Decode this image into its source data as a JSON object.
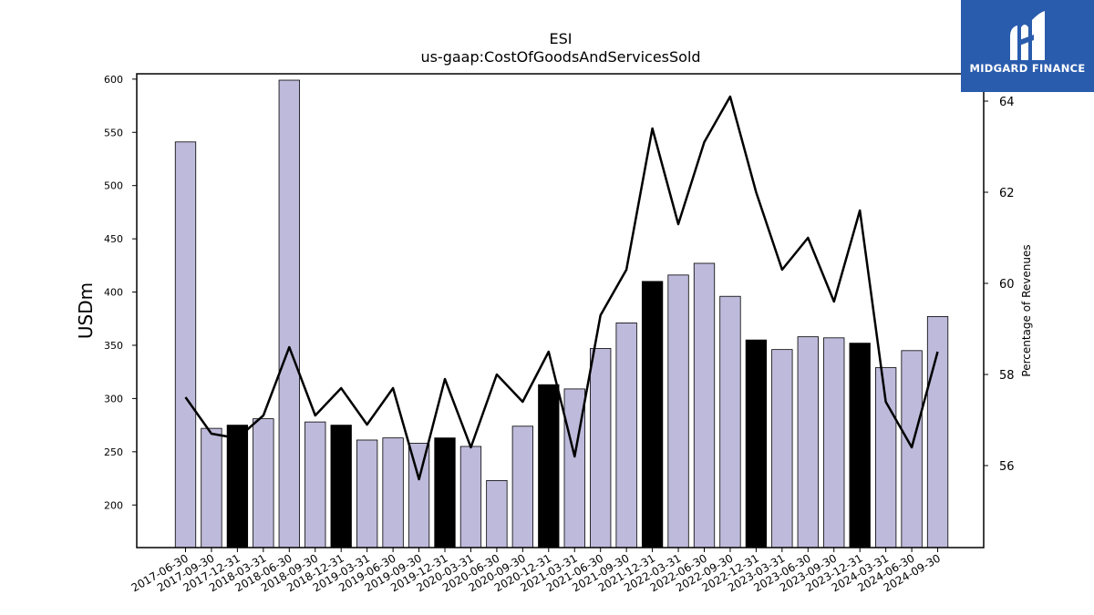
{
  "chart_data": {
    "type": "bar",
    "title": "ESI",
    "subtitle": "us-gaap:CostOfGoodsAndServicesSold",
    "ylabel": "USDm",
    "y2label": "Percentage of Revenues",
    "ylim": [
      160,
      605
    ],
    "y2lim": [
      54.2,
      64.6
    ],
    "yticks": [
      200,
      250,
      300,
      350,
      400,
      450,
      500,
      550,
      600
    ],
    "y2ticks": [
      56,
      58,
      60,
      62,
      64
    ],
    "categories": [
      "2017-06-30",
      "2017-09-30",
      "2017-12-31",
      "2018-03-31",
      "2018-06-30",
      "2018-09-30",
      "2018-12-31",
      "2019-03-31",
      "2019-06-30",
      "2019-09-30",
      "2019-12-31",
      "2020-03-31",
      "2020-06-30",
      "2020-09-30",
      "2020-12-31",
      "2021-03-31",
      "2021-06-30",
      "2021-09-30",
      "2021-12-31",
      "2022-03-31",
      "2022-06-30",
      "2022-09-30",
      "2022-12-31",
      "2023-03-31",
      "2023-06-30",
      "2023-09-30",
      "2023-12-31",
      "2024-03-31",
      "2024-06-30",
      "2024-09-30"
    ],
    "series": [
      {
        "type": "bar",
        "values": [
          541,
          272,
          275,
          281,
          599,
          278,
          275,
          261,
          263,
          258,
          263,
          255,
          223,
          274,
          313,
          309,
          347,
          371,
          410,
          416,
          427,
          396,
          355,
          346,
          358,
          357,
          352,
          329,
          345,
          377
        ],
        "highlight": [
          false,
          false,
          true,
          false,
          false,
          false,
          true,
          false,
          false,
          false,
          true,
          false,
          false,
          false,
          true,
          false,
          false,
          false,
          true,
          false,
          false,
          false,
          true,
          false,
          false,
          false,
          true,
          false,
          false,
          false
        ]
      },
      {
        "type": "line",
        "axis": "right",
        "values": [
          57.5,
          56.7,
          56.6,
          57.1,
          58.6,
          57.1,
          57.7,
          56.9,
          57.7,
          55.7,
          57.9,
          56.4,
          58.0,
          57.4,
          58.5,
          56.2,
          59.3,
          60.3,
          63.4,
          61.3,
          63.1,
          64.1,
          62.0,
          60.3,
          61.0,
          59.6,
          61.6,
          57.4,
          56.4,
          58.5
        ]
      }
    ],
    "colors": {
      "bar": "#bebadb",
      "bar_highlight": "#000000",
      "line": "#000000"
    },
    "grid": false,
    "legend": "none"
  },
  "logo": {
    "text": "MIDGARD FINANCE",
    "background": "#2a5cad"
  }
}
